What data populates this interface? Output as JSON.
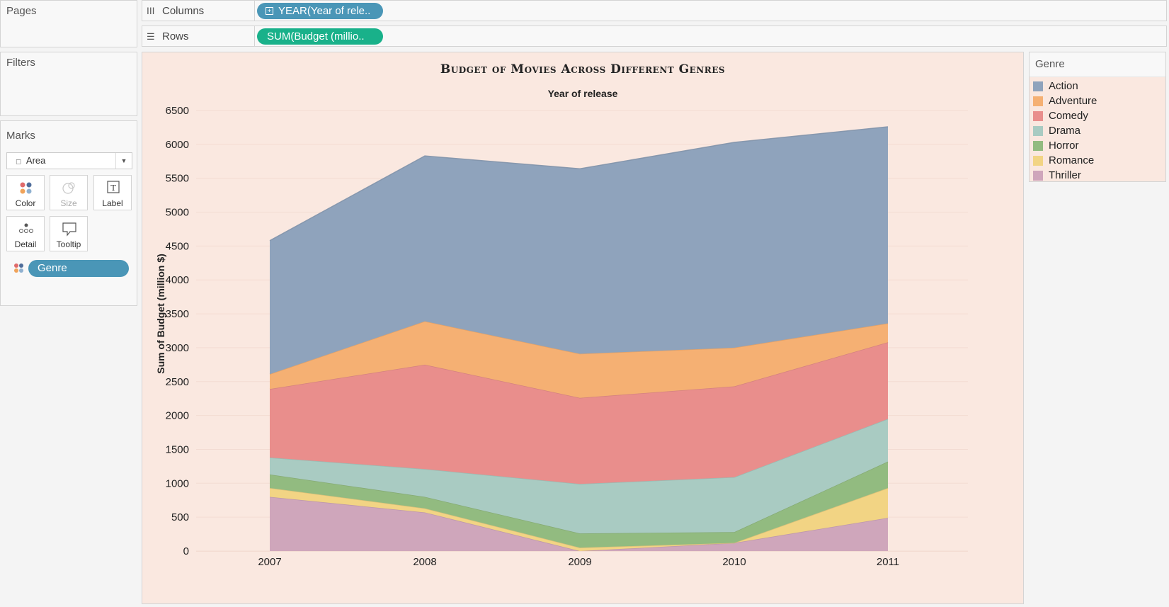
{
  "panels": {
    "pages": "Pages",
    "filters": "Filters",
    "marks": "Marks"
  },
  "shelves": {
    "columns": {
      "label": "Columns",
      "pill": "YEAR(Year of rele..",
      "pill_color": "#4a96b7"
    },
    "rows": {
      "label": "Rows",
      "pill": "SUM(Budget (millio..",
      "pill_color": "#19b18a"
    }
  },
  "marks": {
    "type": "Area",
    "buttons": {
      "color": "Color",
      "size": "Size",
      "label": "Label",
      "detail": "Detail",
      "tooltip": "Tooltip"
    },
    "field_pill": "Genre",
    "field_pill_color": "#4a96b7"
  },
  "legend": {
    "title": "Genre",
    "items": [
      {
        "name": "Action",
        "color": "#8fa3bc"
      },
      {
        "name": "Adventure",
        "color": "#f5b073"
      },
      {
        "name": "Comedy",
        "color": "#e98e8c"
      },
      {
        "name": "Drama",
        "color": "#a9cbc2"
      },
      {
        "name": "Horror",
        "color": "#92bb80"
      },
      {
        "name": "Romance",
        "color": "#f2d484"
      },
      {
        "name": "Thriller",
        "color": "#cfa6bb"
      }
    ]
  },
  "chart_data": {
    "type": "area",
    "stacked": true,
    "title": "Budget of Movies Across Different Genres",
    "xlabel": "Year of release",
    "ylabel": "Sum of Budget (million $)",
    "ylim": [
      0,
      6500
    ],
    "yticks": [
      0,
      500,
      1000,
      1500,
      2000,
      2500,
      3000,
      3500,
      4000,
      4500,
      5000,
      5500,
      6000,
      6500
    ],
    "categories": [
      "2007",
      "2008",
      "2009",
      "2010",
      "2011"
    ],
    "series": [
      {
        "name": "Thriller",
        "values": [
          800,
          570,
          0,
          120,
          490
        ]
      },
      {
        "name": "Romance",
        "values": [
          130,
          60,
          50,
          0,
          440
        ]
      },
      {
        "name": "Horror",
        "values": [
          200,
          170,
          210,
          160,
          390
        ]
      },
      {
        "name": "Drama",
        "values": [
          250,
          410,
          730,
          810,
          630
        ]
      },
      {
        "name": "Comedy",
        "values": [
          1010,
          1540,
          1270,
          1340,
          1130
        ]
      },
      {
        "name": "Adventure",
        "values": [
          220,
          640,
          650,
          570,
          280
        ]
      },
      {
        "name": "Action",
        "values": [
          1970,
          2440,
          2730,
          3030,
          2900
        ]
      }
    ],
    "grid": true,
    "legend_position": "right"
  }
}
